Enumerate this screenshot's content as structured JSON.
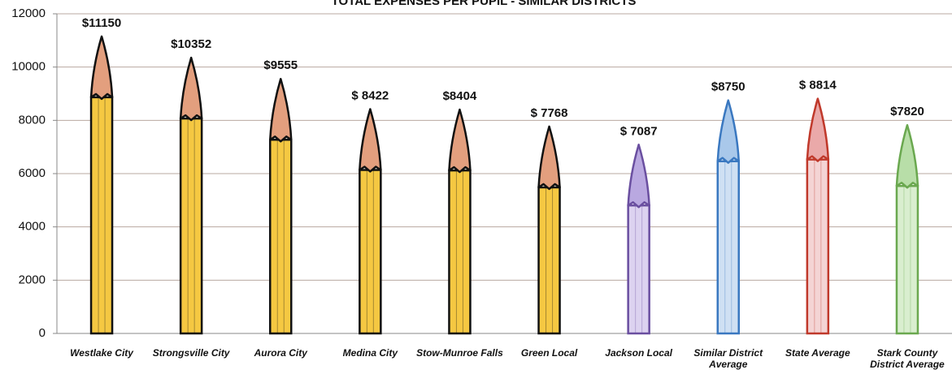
{
  "chart_data": {
    "type": "pencil-bar",
    "title": "TOTAL EXPENSES PER PUPIL - SIMILAR DISTRICTS",
    "categories": [
      "Westlake City",
      "Strongsville City",
      "Aurora City",
      "Medina City",
      "Stow-Munroe Falls",
      "Green Local",
      "Jackson Local",
      "Similar District Average",
      "State Average",
      "Stark County District Average"
    ],
    "values": [
      11150,
      10352,
      9555,
      8422,
      8404,
      7768,
      7087,
      8750,
      8814,
      7820
    ],
    "value_labels": [
      "$11150",
      "$10352",
      "$9555",
      "$ 8422",
      "$8404",
      "$ 7768",
      "$ 7087",
      "$8750",
      "$ 8814",
      "$7820"
    ],
    "colors": [
      "#111111",
      "#111111",
      "#111111",
      "#111111",
      "#111111",
      "#111111",
      "#6a4fa0",
      "#3a78c0",
      "#c0392b",
      "#6aa84f"
    ],
    "fill_colors": [
      "#f5c842",
      "#f5c842",
      "#f5c842",
      "#f5c842",
      "#f5c842",
      "#f5c842",
      "#dcd2f0",
      "#cfe0f3",
      "#f4d4d4",
      "#d9eecf"
    ],
    "tip_colors": [
      "#e39f7e",
      "#e39f7e",
      "#e39f7e",
      "#e39f7e",
      "#e39f7e",
      "#e39f7e",
      "#b9a8e0",
      "#a9c8ea",
      "#eaa9a9",
      "#b8dea8"
    ],
    "ylim": [
      0,
      12000
    ],
    "yticks": [
      0,
      2000,
      4000,
      6000,
      8000,
      10000,
      12000
    ],
    "grid": true
  }
}
